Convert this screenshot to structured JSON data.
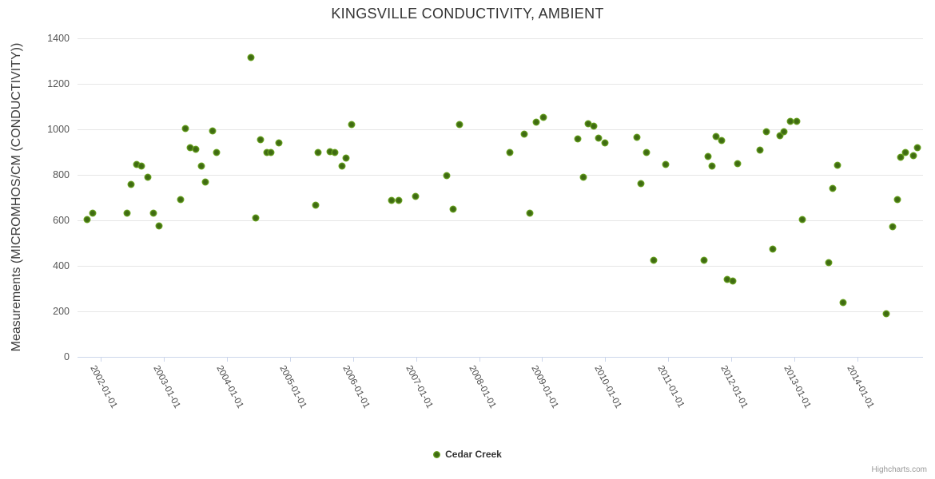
{
  "credits": "Highcharts.com",
  "chart_data": {
    "type": "scatter",
    "title": "KINGSVILLE CONDUCTIVITY, AMBIENT",
    "xlabel": "",
    "ylabel": "Measurements (MICROMHOS/CM (CONDUCTIVITY))",
    "xlim": [
      2001.63,
      2015.04
    ],
    "ylim": [
      0,
      1400
    ],
    "y_ticks": [
      0,
      200,
      400,
      600,
      800,
      1000,
      1200,
      1400
    ],
    "x_ticks": [
      {
        "year": 2002,
        "label": "2002-01-01"
      },
      {
        "year": 2003,
        "label": "2003-01-01"
      },
      {
        "year": 2004,
        "label": "2004-01-01"
      },
      {
        "year": 2005,
        "label": "2005-01-01"
      },
      {
        "year": 2006,
        "label": "2006-01-01"
      },
      {
        "year": 2007,
        "label": "2007-01-01"
      },
      {
        "year": 2008,
        "label": "2008-01-01"
      },
      {
        "year": 2009,
        "label": "2009-01-01"
      },
      {
        "year": 2010,
        "label": "2010-01-01"
      },
      {
        "year": 2011,
        "label": "2011-01-01"
      },
      {
        "year": 2012,
        "label": "2012-01-01"
      },
      {
        "year": 2013,
        "label": "2013-01-01"
      },
      {
        "year": 2014,
        "label": "2014-01-01"
      }
    ],
    "grid": true,
    "legend_position": "bottom-center",
    "colors": {
      "grid": "#e6e6e6",
      "axis_line": "#ccd6eb",
      "title": "#333333",
      "labels": "#4a4a4a",
      "credits": "#999999"
    },
    "series": [
      {
        "name": "Cedar Creek",
        "color": "#76b524",
        "center_color": "#3f6b12",
        "points": [
          [
            2001.78,
            605
          ],
          [
            2001.87,
            633
          ],
          [
            2002.41,
            632
          ],
          [
            2002.48,
            758
          ],
          [
            2002.57,
            845
          ],
          [
            2002.65,
            838
          ],
          [
            2002.74,
            790
          ],
          [
            2002.83,
            633
          ],
          [
            2002.92,
            574
          ],
          [
            2003.26,
            692
          ],
          [
            2003.34,
            1003
          ],
          [
            2003.42,
            920
          ],
          [
            2003.5,
            912
          ],
          [
            2003.59,
            838
          ],
          [
            2003.66,
            770
          ],
          [
            2003.77,
            993
          ],
          [
            2003.84,
            897
          ],
          [
            2004.38,
            1315
          ],
          [
            2004.46,
            610
          ],
          [
            2004.53,
            953
          ],
          [
            2004.63,
            898
          ],
          [
            2004.7,
            897
          ],
          [
            2004.82,
            941
          ],
          [
            2005.41,
            668
          ],
          [
            2005.45,
            900
          ],
          [
            2005.63,
            903
          ],
          [
            2005.71,
            900
          ],
          [
            2005.82,
            840
          ],
          [
            2005.89,
            873
          ],
          [
            2005.98,
            1021
          ],
          [
            2006.61,
            688
          ],
          [
            2006.73,
            688
          ],
          [
            2006.99,
            705
          ],
          [
            2007.49,
            798
          ],
          [
            2007.59,
            648
          ],
          [
            2007.69,
            1020
          ],
          [
            2008.49,
            898
          ],
          [
            2008.72,
            978
          ],
          [
            2008.8,
            630
          ],
          [
            2008.9,
            1030
          ],
          [
            2009.02,
            1053
          ],
          [
            2009.56,
            958
          ],
          [
            2009.65,
            790
          ],
          [
            2009.73,
            1025
          ],
          [
            2009.82,
            1013
          ],
          [
            2009.89,
            962
          ],
          [
            2009.99,
            942
          ],
          [
            2010.5,
            964
          ],
          [
            2010.56,
            762
          ],
          [
            2010.65,
            900
          ],
          [
            2010.77,
            424
          ],
          [
            2010.96,
            845
          ],
          [
            2011.57,
            424
          ],
          [
            2011.63,
            880
          ],
          [
            2011.69,
            840
          ],
          [
            2011.76,
            970
          ],
          [
            2011.84,
            950
          ],
          [
            2011.93,
            342
          ],
          [
            2012.02,
            333
          ],
          [
            2012.1,
            848
          ],
          [
            2012.45,
            910
          ],
          [
            2012.56,
            988
          ],
          [
            2012.66,
            472
          ],
          [
            2012.77,
            972
          ],
          [
            2012.84,
            988
          ],
          [
            2012.93,
            1035
          ],
          [
            2013.04,
            1035
          ],
          [
            2013.12,
            603
          ],
          [
            2013.54,
            413
          ],
          [
            2013.61,
            740
          ],
          [
            2013.69,
            842
          ],
          [
            2013.77,
            240
          ],
          [
            2014.46,
            190
          ],
          [
            2014.56,
            573
          ],
          [
            2014.64,
            690
          ],
          [
            2014.69,
            878
          ],
          [
            2014.76,
            898
          ],
          [
            2014.89,
            884
          ],
          [
            2014.95,
            918
          ]
        ]
      }
    ]
  }
}
